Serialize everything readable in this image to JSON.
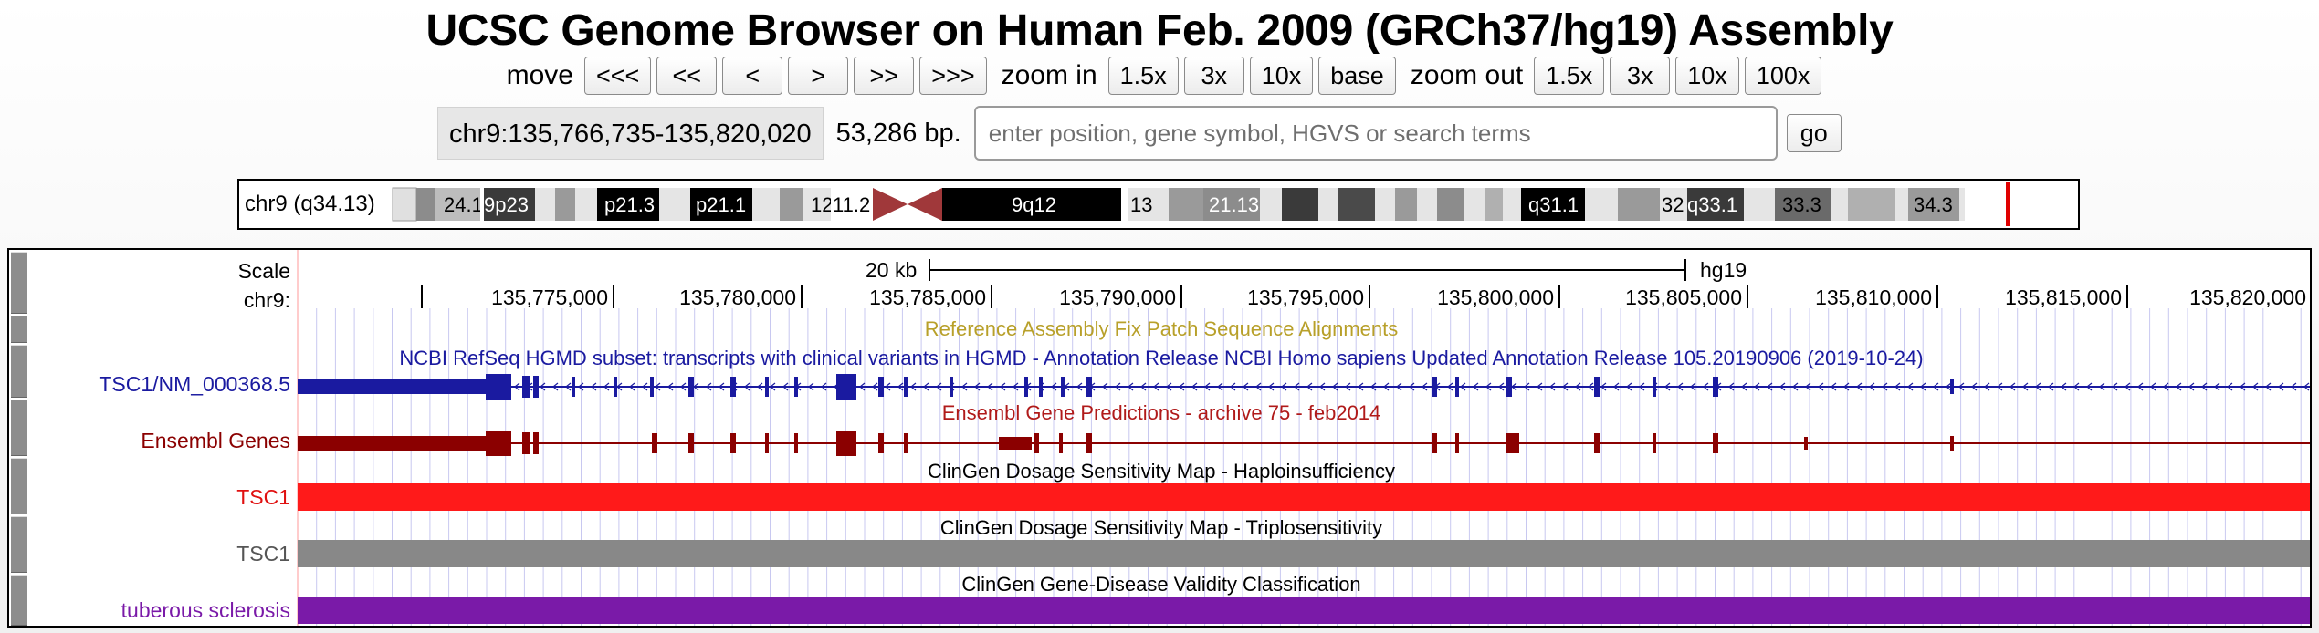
{
  "title": "UCSC Genome Browser on Human Feb. 2009 (GRCh37/hg19) Assembly",
  "nav": {
    "move_label": "move",
    "move_buttons": [
      "<<<",
      "<<",
      "<",
      ">",
      ">>",
      ">>>"
    ],
    "zoom_in_label": "zoom in",
    "zoom_in_buttons": [
      "1.5x",
      "3x",
      "10x",
      "base"
    ],
    "zoom_out_label": "zoom out",
    "zoom_out_buttons": [
      "1.5x",
      "3x",
      "10x",
      "100x"
    ]
  },
  "position": {
    "value": "chr9:135,766,735-135,820,020",
    "size": "53,286 bp.",
    "search_placeholder": "enter position, gene symbol, HGVS or search terms",
    "go_label": "go"
  },
  "ideogram": {
    "label": "chr9 (q34.13)",
    "bands": [
      "24.1",
      "9p23",
      "p21.3",
      "p21.1",
      "12",
      "11.2",
      "9q12",
      "13",
      "21.13",
      "q31.1",
      "32",
      "q33.1",
      "33.3",
      "34.3"
    ]
  },
  "scale": {
    "label": "Scale",
    "chrom_label": "chr9:",
    "bar_label": "20 kb",
    "assembly": "hg19",
    "ticks": [
      "135,775,000",
      "135,780,000",
      "135,785,000",
      "135,790,000",
      "135,795,000",
      "135,800,000",
      "135,805,000",
      "135,810,000",
      "135,815,000",
      "135,820,000"
    ]
  },
  "tracks": {
    "fix_patch_title": "Reference Assembly Fix Patch Sequence Alignments",
    "refseq_title": "NCBI RefSeq HGMD subset: transcripts with clinical variants in HGMD - Annotation Release NCBI Homo sapiens Updated Annotation Release 105.20190906 (2019-10-24)",
    "refseq_label": "TSC1/NM_000368.5",
    "ensembl_title": "Ensembl Gene Predictions - archive 75 - feb2014",
    "ensembl_label": "Ensembl Genes",
    "haplo_title": "ClinGen Dosage Sensitivity Map - Haploinsufficiency",
    "haplo_label": "TSC1",
    "triplo_title": "ClinGen Dosage Sensitivity Map - Triplosensitivity",
    "triplo_label": "TSC1",
    "validity_title": "ClinGen Gene-Disease Validity Classification",
    "validity_label": "tuberous sclerosis"
  },
  "colors": {
    "refseq": "#1a1aa0",
    "ensembl": "#8b0000",
    "haplo": "#ff1a1a",
    "triplo": "#888888",
    "validity": "#7a1aa8",
    "fix_patch": "#b8a02a"
  }
}
